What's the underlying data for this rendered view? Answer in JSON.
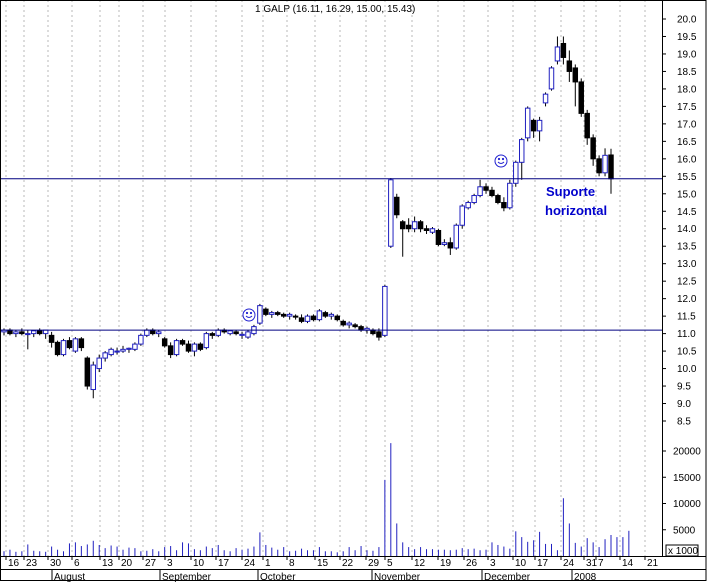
{
  "chart_data": {
    "type": "candlestick",
    "title": "1 GALP (16.11, 16.29, 15.00, 15.43)",
    "xlabel": "",
    "ylabel": "",
    "ylim": [
      8.0,
      20.5
    ],
    "volume_ylim": [
      0,
      22000
    ],
    "price_ticks": [
      "20.0",
      "19.5",
      "19.0",
      "18.5",
      "18.0",
      "17.5",
      "17.0",
      "16.5",
      "16.0",
      "15.5",
      "15.0",
      "14.5",
      "14.0",
      "13.5",
      "13.0",
      "12.5",
      "12.0",
      "11.5",
      "11.0",
      "10.5",
      "10.0",
      "9.5",
      "9.0",
      "8.5"
    ],
    "volume_ticks": [
      "20000",
      "15000",
      "10000",
      "5000"
    ],
    "volume_scale_label": "x 1000",
    "day_labels": [
      "16",
      "23",
      "30",
      "6",
      "13",
      "20",
      "27",
      "3",
      "10",
      "17",
      "24",
      "1",
      "8",
      "15",
      "22",
      "29",
      "5",
      "12",
      "19",
      "26",
      "3",
      "10",
      "17",
      "24",
      "31",
      "7",
      "14",
      "21"
    ],
    "month_labels": [
      "August",
      "September",
      "October",
      "November",
      "December",
      "2008"
    ],
    "support_levels": [
      15.43,
      11.1
    ],
    "annotation": {
      "line1": "Suporte",
      "line2": "horizontal"
    },
    "annotation_color": "#0000cc",
    "line_color": "#000080",
    "candles": [
      {
        "o": 11.05,
        "h": 11.15,
        "l": 10.95,
        "c": 11.1
      },
      {
        "o": 11.1,
        "h": 11.15,
        "l": 10.95,
        "c": 11.0
      },
      {
        "o": 11.0,
        "h": 11.1,
        "l": 10.9,
        "c": 11.05
      },
      {
        "o": 11.05,
        "h": 11.15,
        "l": 10.95,
        "c": 11.0
      },
      {
        "o": 11.0,
        "h": 11.1,
        "l": 10.55,
        "c": 11.0
      },
      {
        "o": 11.0,
        "h": 11.1,
        "l": 10.9,
        "c": 11.08
      },
      {
        "o": 11.08,
        "h": 11.15,
        "l": 10.95,
        "c": 11.0
      },
      {
        "o": 11.0,
        "h": 11.1,
        "l": 10.85,
        "c": 11.1
      },
      {
        "o": 10.95,
        "h": 11.05,
        "l": 10.6,
        "c": 10.75
      },
      {
        "o": 10.75,
        "h": 10.8,
        "l": 10.35,
        "c": 10.4
      },
      {
        "o": 10.4,
        "h": 10.85,
        "l": 10.35,
        "c": 10.8
      },
      {
        "o": 10.8,
        "h": 10.9,
        "l": 10.55,
        "c": 10.6
      },
      {
        "o": 10.5,
        "h": 10.9,
        "l": 10.45,
        "c": 10.85
      },
      {
        "o": 10.85,
        "h": 10.9,
        "l": 10.5,
        "c": 10.6
      },
      {
        "o": 10.3,
        "h": 10.35,
        "l": 9.4,
        "c": 9.5
      },
      {
        "o": 9.4,
        "h": 10.2,
        "l": 9.15,
        "c": 10.1
      },
      {
        "o": 10.0,
        "h": 10.4,
        "l": 9.9,
        "c": 10.3
      },
      {
        "o": 10.3,
        "h": 10.5,
        "l": 10.2,
        "c": 10.45
      },
      {
        "o": 10.4,
        "h": 10.6,
        "l": 10.35,
        "c": 10.55
      },
      {
        "o": 10.5,
        "h": 10.6,
        "l": 10.4,
        "c": 10.5
      },
      {
        "o": 10.5,
        "h": 10.65,
        "l": 10.45,
        "c": 10.55
      },
      {
        "o": 10.55,
        "h": 10.6,
        "l": 10.45,
        "c": 10.58
      },
      {
        "o": 10.55,
        "h": 10.75,
        "l": 10.5,
        "c": 10.7
      },
      {
        "o": 10.7,
        "h": 11.0,
        "l": 10.65,
        "c": 10.95
      },
      {
        "o": 10.95,
        "h": 11.15,
        "l": 10.9,
        "c": 11.1
      },
      {
        "o": 11.1,
        "h": 11.15,
        "l": 10.95,
        "c": 11.0
      },
      {
        "o": 11.0,
        "h": 11.1,
        "l": 10.9,
        "c": 11.05
      },
      {
        "o": 10.85,
        "h": 10.9,
        "l": 10.6,
        "c": 10.65
      },
      {
        "o": 10.65,
        "h": 10.75,
        "l": 10.3,
        "c": 10.4
      },
      {
        "o": 10.4,
        "h": 10.85,
        "l": 10.35,
        "c": 10.8
      },
      {
        "o": 10.8,
        "h": 10.85,
        "l": 10.65,
        "c": 10.7
      },
      {
        "o": 10.7,
        "h": 10.8,
        "l": 10.45,
        "c": 10.5
      },
      {
        "o": 10.5,
        "h": 10.75,
        "l": 10.35,
        "c": 10.7
      },
      {
        "o": 10.7,
        "h": 10.75,
        "l": 10.5,
        "c": 10.55
      },
      {
        "o": 10.6,
        "h": 11.05,
        "l": 10.55,
        "c": 11.0
      },
      {
        "o": 11.0,
        "h": 11.05,
        "l": 10.85,
        "c": 10.95
      },
      {
        "o": 10.95,
        "h": 11.15,
        "l": 10.9,
        "c": 11.1
      },
      {
        "o": 11.1,
        "h": 11.15,
        "l": 11.0,
        "c": 11.05
      },
      {
        "o": 11.0,
        "h": 11.1,
        "l": 10.95,
        "c": 11.08
      },
      {
        "o": 11.05,
        "h": 11.1,
        "l": 10.95,
        "c": 11.0
      },
      {
        "o": 10.95,
        "h": 11.05,
        "l": 10.85,
        "c": 10.98
      },
      {
        "o": 10.9,
        "h": 11.1,
        "l": 10.85,
        "c": 11.05
      },
      {
        "o": 11.0,
        "h": 11.25,
        "l": 10.95,
        "c": 11.2
      },
      {
        "o": 11.3,
        "h": 11.85,
        "l": 11.25,
        "c": 11.8
      },
      {
        "o": 11.7,
        "h": 11.75,
        "l": 11.5,
        "c": 11.55
      },
      {
        "o": 11.55,
        "h": 11.65,
        "l": 11.45,
        "c": 11.6
      },
      {
        "o": 11.6,
        "h": 11.65,
        "l": 11.5,
        "c": 11.55
      },
      {
        "o": 11.55,
        "h": 11.6,
        "l": 11.45,
        "c": 11.5
      },
      {
        "o": 11.5,
        "h": 11.6,
        "l": 11.4,
        "c": 11.55
      },
      {
        "o": 11.5,
        "h": 11.55,
        "l": 11.4,
        "c": 11.48
      },
      {
        "o": 11.45,
        "h": 11.55,
        "l": 11.3,
        "c": 11.35
      },
      {
        "o": 11.35,
        "h": 11.55,
        "l": 11.3,
        "c": 11.5
      },
      {
        "o": 11.5,
        "h": 11.55,
        "l": 11.35,
        "c": 11.4
      },
      {
        "o": 11.4,
        "h": 11.7,
        "l": 11.35,
        "c": 11.65
      },
      {
        "o": 11.6,
        "h": 11.65,
        "l": 11.45,
        "c": 11.5
      },
      {
        "o": 11.5,
        "h": 11.6,
        "l": 11.4,
        "c": 11.55
      },
      {
        "o": 11.5,
        "h": 11.55,
        "l": 11.35,
        "c": 11.4
      },
      {
        "o": 11.35,
        "h": 11.4,
        "l": 11.2,
        "c": 11.25
      },
      {
        "o": 11.25,
        "h": 11.35,
        "l": 11.15,
        "c": 11.3
      },
      {
        "o": 11.25,
        "h": 11.3,
        "l": 11.15,
        "c": 11.2
      },
      {
        "o": 11.2,
        "h": 11.25,
        "l": 11.05,
        "c": 11.1
      },
      {
        "o": 11.1,
        "h": 11.2,
        "l": 11.0,
        "c": 11.15
      },
      {
        "o": 11.1,
        "h": 11.15,
        "l": 10.95,
        "c": 11.0
      },
      {
        "o": 11.05,
        "h": 11.15,
        "l": 10.8,
        "c": 10.9
      },
      {
        "o": 10.95,
        "h": 12.4,
        "l": 10.9,
        "c": 12.35
      },
      {
        "o": 13.5,
        "h": 15.45,
        "l": 13.45,
        "c": 15.4
      },
      {
        "o": 14.9,
        "h": 15.0,
        "l": 14.3,
        "c": 14.4
      },
      {
        "o": 14.2,
        "h": 14.25,
        "l": 13.2,
        "c": 14.0
      },
      {
        "o": 14.1,
        "h": 14.3,
        "l": 13.9,
        "c": 14.0
      },
      {
        "o": 14.0,
        "h": 14.35,
        "l": 13.9,
        "c": 14.2
      },
      {
        "o": 14.2,
        "h": 14.25,
        "l": 13.9,
        "c": 14.0
      },
      {
        "o": 14.0,
        "h": 14.1,
        "l": 13.85,
        "c": 13.95
      },
      {
        "o": 13.9,
        "h": 14.05,
        "l": 13.85,
        "c": 14.0
      },
      {
        "o": 13.95,
        "h": 14.0,
        "l": 13.5,
        "c": 13.55
      },
      {
        "o": 13.55,
        "h": 13.7,
        "l": 13.5,
        "c": 13.6
      },
      {
        "o": 13.6,
        "h": 13.75,
        "l": 13.25,
        "c": 13.45
      },
      {
        "o": 13.45,
        "h": 14.15,
        "l": 13.4,
        "c": 14.1
      },
      {
        "o": 14.1,
        "h": 14.7,
        "l": 14.0,
        "c": 14.65
      },
      {
        "o": 14.6,
        "h": 14.8,
        "l": 14.55,
        "c": 14.75
      },
      {
        "o": 14.75,
        "h": 15.0,
        "l": 14.7,
        "c": 14.95
      },
      {
        "o": 14.95,
        "h": 15.4,
        "l": 14.9,
        "c": 15.2
      },
      {
        "o": 15.2,
        "h": 15.3,
        "l": 15.0,
        "c": 15.1
      },
      {
        "o": 15.1,
        "h": 15.2,
        "l": 14.9,
        "c": 14.95
      },
      {
        "o": 14.95,
        "h": 15.0,
        "l": 14.7,
        "c": 14.75
      },
      {
        "o": 14.75,
        "h": 14.9,
        "l": 14.5,
        "c": 14.6
      },
      {
        "o": 14.6,
        "h": 15.4,
        "l": 14.55,
        "c": 15.3
      },
      {
        "o": 15.3,
        "h": 15.95,
        "l": 15.2,
        "c": 15.9
      },
      {
        "o": 15.9,
        "h": 16.6,
        "l": 15.4,
        "c": 16.55
      },
      {
        "o": 16.6,
        "h": 17.5,
        "l": 16.5,
        "c": 17.45
      },
      {
        "o": 17.1,
        "h": 17.15,
        "l": 16.6,
        "c": 16.8
      },
      {
        "o": 16.8,
        "h": 17.2,
        "l": 16.5,
        "c": 17.1
      },
      {
        "o": 17.6,
        "h": 17.9,
        "l": 17.5,
        "c": 17.85
      },
      {
        "o": 18.0,
        "h": 18.65,
        "l": 17.95,
        "c": 18.6
      },
      {
        "o": 18.8,
        "h": 19.5,
        "l": 18.7,
        "c": 19.2
      },
      {
        "o": 19.3,
        "h": 19.5,
        "l": 18.7,
        "c": 18.9
      },
      {
        "o": 18.8,
        "h": 19.1,
        "l": 18.2,
        "c": 18.5
      },
      {
        "o": 18.6,
        "h": 18.7,
        "l": 17.5,
        "c": 18.2
      },
      {
        "o": 18.2,
        "h": 18.3,
        "l": 17.2,
        "c": 17.3
      },
      {
        "o": 17.3,
        "h": 17.4,
        "l": 16.4,
        "c": 16.6
      },
      {
        "o": 16.6,
        "h": 16.7,
        "l": 15.8,
        "c": 16.0
      },
      {
        "o": 16.0,
        "h": 16.1,
        "l": 15.5,
        "c": 15.6
      },
      {
        "o": 15.6,
        "h": 16.3,
        "l": 15.5,
        "c": 16.1
      },
      {
        "o": 16.11,
        "h": 16.29,
        "l": 15.0,
        "c": 15.43
      }
    ],
    "volumes": [
      900,
      1200,
      800,
      900,
      2200,
      1000,
      900,
      800,
      1800,
      1200,
      900,
      2400,
      2600,
      1900,
      2200,
      2900,
      2100,
      1500,
      2000,
      1800,
      1200,
      1600,
      1500,
      900,
      1000,
      1300,
      900,
      1700,
      1900,
      1100,
      2600,
      2400,
      1300,
      1100,
      1800,
      1500,
      2100,
      1100,
      900,
      1500,
      1200,
      1400,
      1800,
      4500,
      2100,
      1600,
      1200,
      1700,
      900,
      1000,
      1400,
      1100,
      1100,
      1700,
      900,
      900,
      700,
      900,
      1700,
      1100,
      1900,
      1100,
      1000,
      1700,
      14500,
      21500,
      6200,
      2600,
      1700,
      1300,
      1700,
      1300,
      1300,
      1200,
      1200,
      1100,
      1200,
      1500,
      1300,
      1400,
      1100,
      1200,
      2600,
      2100,
      1800,
      1400,
      4700,
      3600,
      2700,
      3000,
      4600,
      2300,
      2300,
      1100,
      11000,
      6200,
      2500,
      1800,
      3400,
      2600,
      1700,
      3200,
      4000,
      3600,
      3600,
      4800
    ]
  }
}
